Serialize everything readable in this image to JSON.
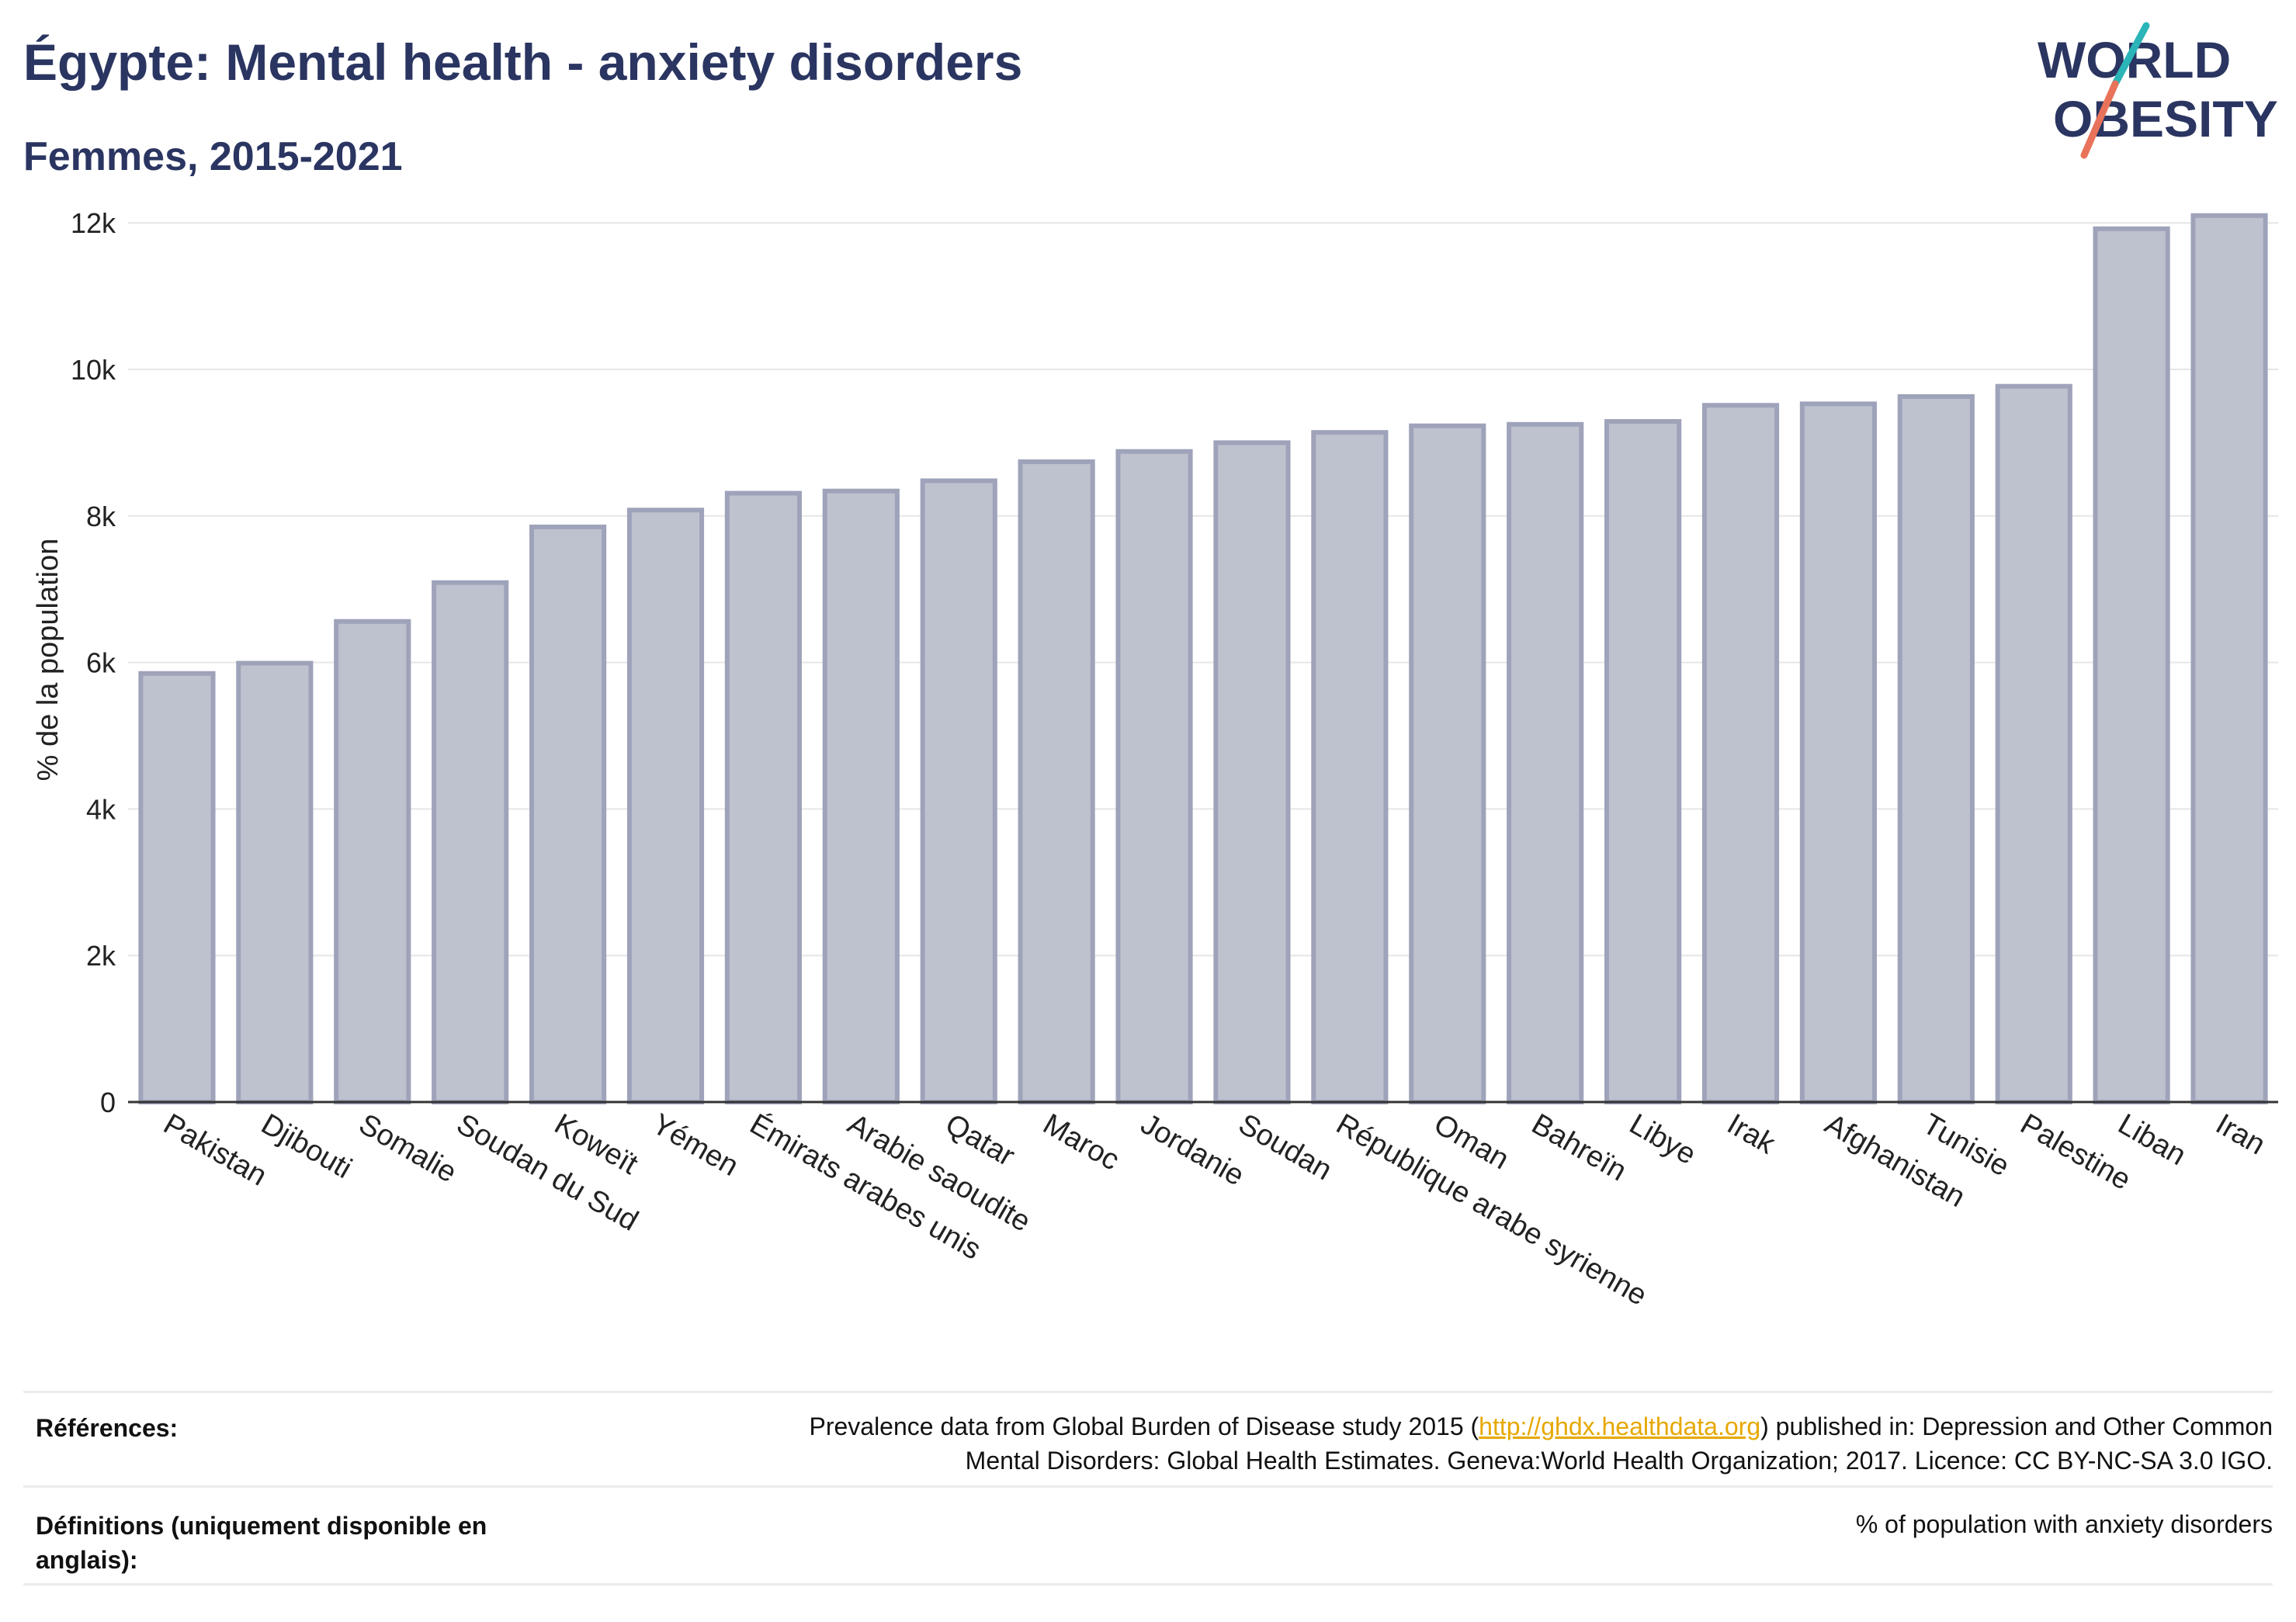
{
  "header": {
    "title": "Égypte: Mental health - anxiety disorders",
    "subtitle": "Femmes, 2015-2021",
    "logo_line1": "WORLD",
    "logo_line2": "OBESITY"
  },
  "chart_data": {
    "type": "bar",
    "title": "Égypte: Mental health - anxiety disorders",
    "subtitle": "Femmes, 2015-2021",
    "xlabel": "",
    "ylabel": "% de la population",
    "ylim": [
      0,
      12500
    ],
    "yticks": [
      0,
      2000,
      4000,
      6000,
      8000,
      10000,
      12000
    ],
    "ytick_labels": [
      "0",
      "2k",
      "4k",
      "6k",
      "8k",
      "10k",
      "12k"
    ],
    "grid": true,
    "bar_color": "#bec2cf",
    "bar_edge_color": "#9ea3ba",
    "categories": [
      "Pakistan",
      "Djibouti",
      "Somalie",
      "Soudan du Sud",
      "Koweït",
      "Yémen",
      "Émirats arabes unis",
      "Arabie saoudite",
      "Qatar",
      "Maroc",
      "Jordanie",
      "Soudan",
      "République arabe syrienne",
      "Oman",
      "Bahreïn",
      "Libye",
      "Irak",
      "Afghanistan",
      "Tunisie",
      "Palestine",
      "Liban",
      "Iran"
    ],
    "values": [
      5850,
      5990,
      6560,
      7090,
      7850,
      8080,
      8310,
      8340,
      8480,
      8740,
      8880,
      9000,
      9140,
      9230,
      9250,
      9290,
      9510,
      9530,
      9630,
      9770,
      11920,
      12100
    ]
  },
  "footer": {
    "references_label": "Références:",
    "references_text_before": "Prevalence data from Global Burden of Disease study 2015 (",
    "references_link": "http://ghdx.healthdata.org",
    "references_text_after": ") published in: Depression and Other Common",
    "references_text_line2": "Mental Disorders: Global Health Estimates. Geneva:World Health Organization; 2017. Licence: CC BY-NC-SA 3.0 IGO.",
    "definitions_label_line1": "Définitions (uniquement disponible en",
    "definitions_label_line2": "anglais):",
    "definitions_text": "% of population with anxiety disorders"
  },
  "colors": {
    "title": "#2a3561",
    "logo_accent_teal": "#2bb5b8",
    "logo_accent_coral": "#e8735a",
    "link": "#e6a800"
  }
}
